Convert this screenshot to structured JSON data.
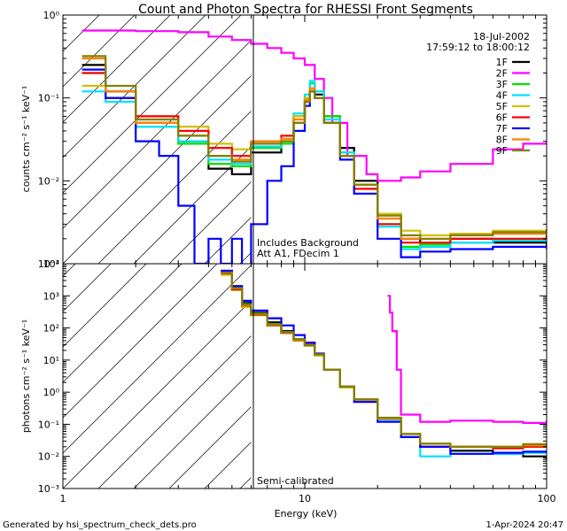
{
  "chart_data": {
    "type": "line",
    "title": "Count and Photon Spectra for RHESSI Front Segments",
    "date": "18-Jul-2002",
    "time_range": "17:59:12 to 18:00:12",
    "xlabel": "Energy (keV)",
    "xscale": "log",
    "xlim": [
      1,
      100
    ],
    "x_tick_labels": [
      "1",
      "10",
      "100"
    ],
    "threshold_energy_kev": 6,
    "legend_position": "top-right",
    "footer_left": "Generated by hsi_spectrum_check_dets.pro",
    "footer_right": "1-Apr-2024 20:47",
    "series_names": [
      "1F",
      "2F",
      "3F",
      "4F",
      "5F",
      "6F",
      "7F",
      "8F",
      "9F"
    ],
    "series_colors": [
      "#000000",
      "#ff00ff",
      "#00e000",
      "#00e0ff",
      "#d0c000",
      "#ff0000",
      "#0000ff",
      "#ff8000",
      "#808000"
    ],
    "panels": [
      {
        "id": "counts",
        "ylabel": "counts cm⁻² s⁻¹ keV⁻¹",
        "yscale": "log",
        "ylim": [
          0.001,
          1
        ],
        "y_tick_labels": [
          "10⁻³",
          "10⁻²",
          "10⁻¹",
          "10⁰"
        ],
        "annotations": [
          "Includes Background",
          "Att A1, FDecim 1"
        ],
        "series": [
          {
            "name": "1F",
            "color": "#000000",
            "x": [
              1.2,
              1.5,
              2,
              3,
              4,
              5,
              6,
              8,
              9,
              10,
              10.5,
              11,
              12,
              14,
              16,
              20,
              25,
              30,
              40,
              60,
              100
            ],
            "y": [
              0.25,
              0.12,
              0.05,
              0.03,
              0.014,
              0.012,
              0.022,
              0.03,
              0.06,
              0.09,
              0.13,
              0.11,
              0.06,
              0.025,
              0.01,
              0.004,
              0.002,
              0.0018,
              0.002,
              0.0018,
              0.0015
            ]
          },
          {
            "name": "2F",
            "color": "#ff00ff",
            "x": [
              1.2,
              2,
              3,
              4,
              5,
              6,
              7,
              8,
              9,
              10,
              11,
              12,
              13,
              15,
              18,
              20,
              25,
              30,
              40,
              60,
              80,
              100
            ],
            "y": [
              0.65,
              0.64,
              0.62,
              0.55,
              0.5,
              0.45,
              0.4,
              0.35,
              0.3,
              0.25,
              0.17,
              0.1,
              0.05,
              0.02,
              0.012,
              0.01,
              0.011,
              0.013,
              0.016,
              0.024,
              0.028,
              0.03
            ]
          },
          {
            "name": "3F",
            "color": "#00e000",
            "x": [
              1.2,
              1.5,
              2,
              3,
              4,
              5,
              6,
              8,
              9,
              10,
              10.5,
              11,
              12,
              14,
              16,
              20,
              25,
              30,
              40,
              60,
              100
            ],
            "y": [
              0.2,
              0.1,
              0.045,
              0.028,
              0.016,
              0.015,
              0.025,
              0.028,
              0.06,
              0.1,
              0.15,
              0.12,
              0.06,
              0.022,
              0.009,
              0.003,
              0.0016,
              0.0017,
              0.0018,
              0.002,
              0.0022
            ]
          },
          {
            "name": "4F",
            "color": "#00e0ff",
            "x": [
              1.2,
              1.5,
              2,
              3,
              4,
              5,
              6,
              8,
              9,
              10,
              10.5,
              11,
              12,
              14,
              16,
              20,
              25,
              30,
              40,
              60,
              100
            ],
            "y": [
              0.12,
              0.09,
              0.045,
              0.03,
              0.018,
              0.016,
              0.026,
              0.03,
              0.065,
              0.11,
              0.16,
              0.12,
              0.055,
              0.022,
              0.008,
              0.0028,
              0.0015,
              0.0016,
              0.0018,
              0.0019,
              0.002
            ]
          },
          {
            "name": "5F",
            "color": "#d0c000",
            "x": [
              1.2,
              1.5,
              2,
              3,
              4,
              5,
              6,
              8,
              9,
              10,
              10.5,
              11,
              12,
              14,
              16,
              20,
              25,
              30,
              40,
              60,
              100
            ],
            "y": [
              0.14,
              0.1,
              0.06,
              0.045,
              0.028,
              0.024,
              0.03,
              0.03,
              0.06,
              0.1,
              0.13,
              0.1,
              0.05,
              0.02,
              0.009,
              0.004,
              0.0025,
              0.0022,
              0.0023,
              0.0025,
              0.0025
            ]
          },
          {
            "name": "6F",
            "color": "#ff0000",
            "x": [
              1.2,
              1.5,
              2,
              3,
              4,
              5,
              6,
              8,
              9,
              10,
              10.5,
              11,
              12,
              14,
              16,
              20,
              25,
              30,
              40,
              60,
              100
            ],
            "y": [
              0.2,
              0.1,
              0.06,
              0.04,
              0.025,
              0.02,
              0.03,
              0.035,
              0.05,
              0.09,
              0.12,
              0.1,
              0.05,
              0.02,
              0.008,
              0.003,
              0.0018,
              0.0018,
              0.002,
              0.002,
              0.0022
            ]
          },
          {
            "name": "7F",
            "color": "#0000ff",
            "x": [
              1.2,
              1.5,
              2,
              2.5,
              3,
              3.5,
              4,
              4.5,
              5,
              5.5,
              6,
              7,
              8,
              9,
              10,
              10.5,
              11,
              12,
              14,
              16,
              20,
              25,
              30,
              40,
              60,
              100
            ],
            "y": [
              0.22,
              0.1,
              0.03,
              0.02,
              0.005,
              0.001,
              0.002,
              0.001,
              0.002,
              0.0008,
              0.003,
              0.01,
              0.015,
              0.04,
              0.08,
              0.12,
              0.1,
              0.05,
              0.018,
              0.007,
              0.002,
              0.0012,
              0.0014,
              0.0015,
              0.0016,
              0.0016
            ]
          },
          {
            "name": "8F",
            "color": "#ff8000",
            "x": [
              1.2,
              1.5,
              2,
              3,
              4,
              5,
              6,
              8,
              9,
              10,
              10.5,
              11,
              12,
              14,
              16,
              20,
              25,
              30,
              40,
              60,
              100
            ],
            "y": [
              0.3,
              0.12,
              0.05,
              0.035,
              0.02,
              0.018,
              0.03,
              0.032,
              0.055,
              0.095,
              0.13,
              0.1,
              0.05,
              0.02,
              0.009,
              0.0035,
              0.002,
              0.002,
              0.0022,
              0.0023,
              0.0025
            ]
          },
          {
            "name": "9F",
            "color": "#808000",
            "x": [
              1.2,
              1.5,
              2,
              3,
              4,
              5,
              6,
              8,
              9,
              10,
              10.5,
              11,
              12,
              14,
              16,
              20,
              25,
              30,
              40,
              60,
              100
            ],
            "y": [
              0.32,
              0.14,
              0.055,
              0.035,
              0.02,
              0.017,
              0.028,
              0.03,
              0.05,
              0.09,
              0.12,
              0.1,
              0.05,
              0.02,
              0.009,
              0.0038,
              0.0022,
              0.002,
              0.0022,
              0.0024,
              0.0026
            ]
          }
        ]
      },
      {
        "id": "photons",
        "ylabel": "photons cm⁻² s⁻¹ keV⁻¹",
        "yscale": "log",
        "ylim": [
          0.001,
          10000
        ],
        "y_tick_labels": [
          "10⁻³",
          "10⁻²",
          "10⁻¹",
          "10⁰",
          "10¹",
          "10²",
          "10³",
          "10⁴"
        ],
        "annotations": [
          "Semi-calibrated"
        ],
        "series": [
          {
            "name": "1F",
            "color": "#000000",
            "x": [
              4.5,
              5,
              5.5,
              6,
              7,
              8,
              9,
              10,
              11,
              12,
              14,
              16,
              20,
              25,
              30,
              40,
              60,
              80,
              100
            ],
            "y": [
              6000,
              2000,
              600,
              300,
              150,
              80,
              45,
              30,
              15,
              5,
              1.5,
              0.6,
              0.15,
              0.05,
              0.02,
              0.015,
              0.012,
              0.01,
              0.008
            ]
          },
          {
            "name": "2F",
            "color": "#ff00ff",
            "x": [
              22,
              22.5,
              23,
              24,
              25,
              30,
              40,
              60,
              80,
              100
            ],
            "y": [
              1000,
              300,
              80,
              5,
              0.2,
              0.12,
              0.13,
              0.12,
              0.11,
              0.13
            ]
          },
          {
            "name": "3F",
            "color": "#00e000",
            "x": [
              4.5,
              5,
              5.5,
              6,
              7,
              8,
              9,
              10,
              11,
              12,
              14,
              16,
              20,
              25,
              30,
              40,
              60,
              80,
              100
            ],
            "y": [
              5000,
              1700,
              550,
              280,
              130,
              75,
              45,
              30,
              15,
              5,
              1.5,
              0.6,
              0.15,
              0.05,
              0.025,
              0.02,
              0.018,
              0.02,
              0.022
            ]
          },
          {
            "name": "4F",
            "color": "#00e0ff",
            "x": [
              4.5,
              5,
              5.5,
              6,
              7,
              8,
              9,
              10,
              11,
              12,
              14,
              16,
              20,
              25,
              30,
              40,
              60,
              80,
              100
            ],
            "y": [
              5500,
              1800,
              500,
              260,
              120,
              70,
              42,
              28,
              14,
              5,
              1.4,
              0.55,
              0.14,
              0.04,
              0.01,
              0.012,
              0.012,
              0.013,
              0.014
            ]
          },
          {
            "name": "5F",
            "color": "#d0c000",
            "x": [
              4.5,
              5,
              5.5,
              6,
              7,
              8,
              9,
              10,
              11,
              12,
              14,
              16,
              20,
              25,
              30,
              40,
              60,
              80,
              100
            ],
            "y": [
              4500,
              1500,
              450,
              250,
              120,
              70,
              40,
              28,
              14,
              5,
              1.4,
              0.55,
              0.15,
              0.05,
              0.025,
              0.02,
              0.02,
              0.022,
              0.022
            ]
          },
          {
            "name": "6F",
            "color": "#ff0000",
            "x": [
              4.5,
              5,
              5.5,
              6,
              7,
              8,
              9,
              10,
              11,
              12,
              14,
              16,
              20,
              25,
              30,
              40,
              60,
              80,
              100
            ],
            "y": [
              5000,
              1600,
              500,
              260,
              120,
              70,
              42,
              30,
              15,
              5,
              1.5,
              0.6,
              0.15,
              0.04,
              0.02,
              0.02,
              0.018,
              0.02,
              0.02
            ]
          },
          {
            "name": "7F",
            "color": "#0000ff",
            "x": [
              4.5,
              5,
              5.5,
              6,
              7,
              8,
              9,
              10,
              11,
              12,
              14,
              16,
              20,
              25,
              30,
              40,
              60,
              80,
              100
            ],
            "y": [
              6000,
              2000,
              700,
              350,
              200,
              120,
              60,
              35,
              16,
              5,
              1.5,
              0.5,
              0.12,
              0.04,
              0.02,
              0.012,
              0.013,
              0.014,
              0.015
            ]
          },
          {
            "name": "8F",
            "color": "#ff8000",
            "x": [
              4.5,
              5,
              5.5,
              6,
              7,
              8,
              9,
              10,
              11,
              12,
              14,
              16,
              20,
              25,
              30,
              40,
              60,
              80,
              100
            ],
            "y": [
              5200,
              1700,
              520,
              270,
              125,
              72,
              43,
              29,
              15,
              5,
              1.5,
              0.6,
              0.15,
              0.05,
              0.025,
              0.02,
              0.02,
              0.022,
              0.023
            ]
          },
          {
            "name": "9F",
            "color": "#808000",
            "x": [
              4.5,
              5,
              5.5,
              6,
              7,
              8,
              9,
              10,
              11,
              12,
              14,
              16,
              20,
              25,
              30,
              40,
              60,
              80,
              100
            ],
            "y": [
              5300,
              1750,
              540,
              275,
              128,
              74,
              44,
              29,
              15,
              5,
              1.5,
              0.6,
              0.16,
              0.05,
              0.025,
              0.02,
              0.02,
              0.024,
              0.024
            ]
          }
        ]
      }
    ]
  }
}
